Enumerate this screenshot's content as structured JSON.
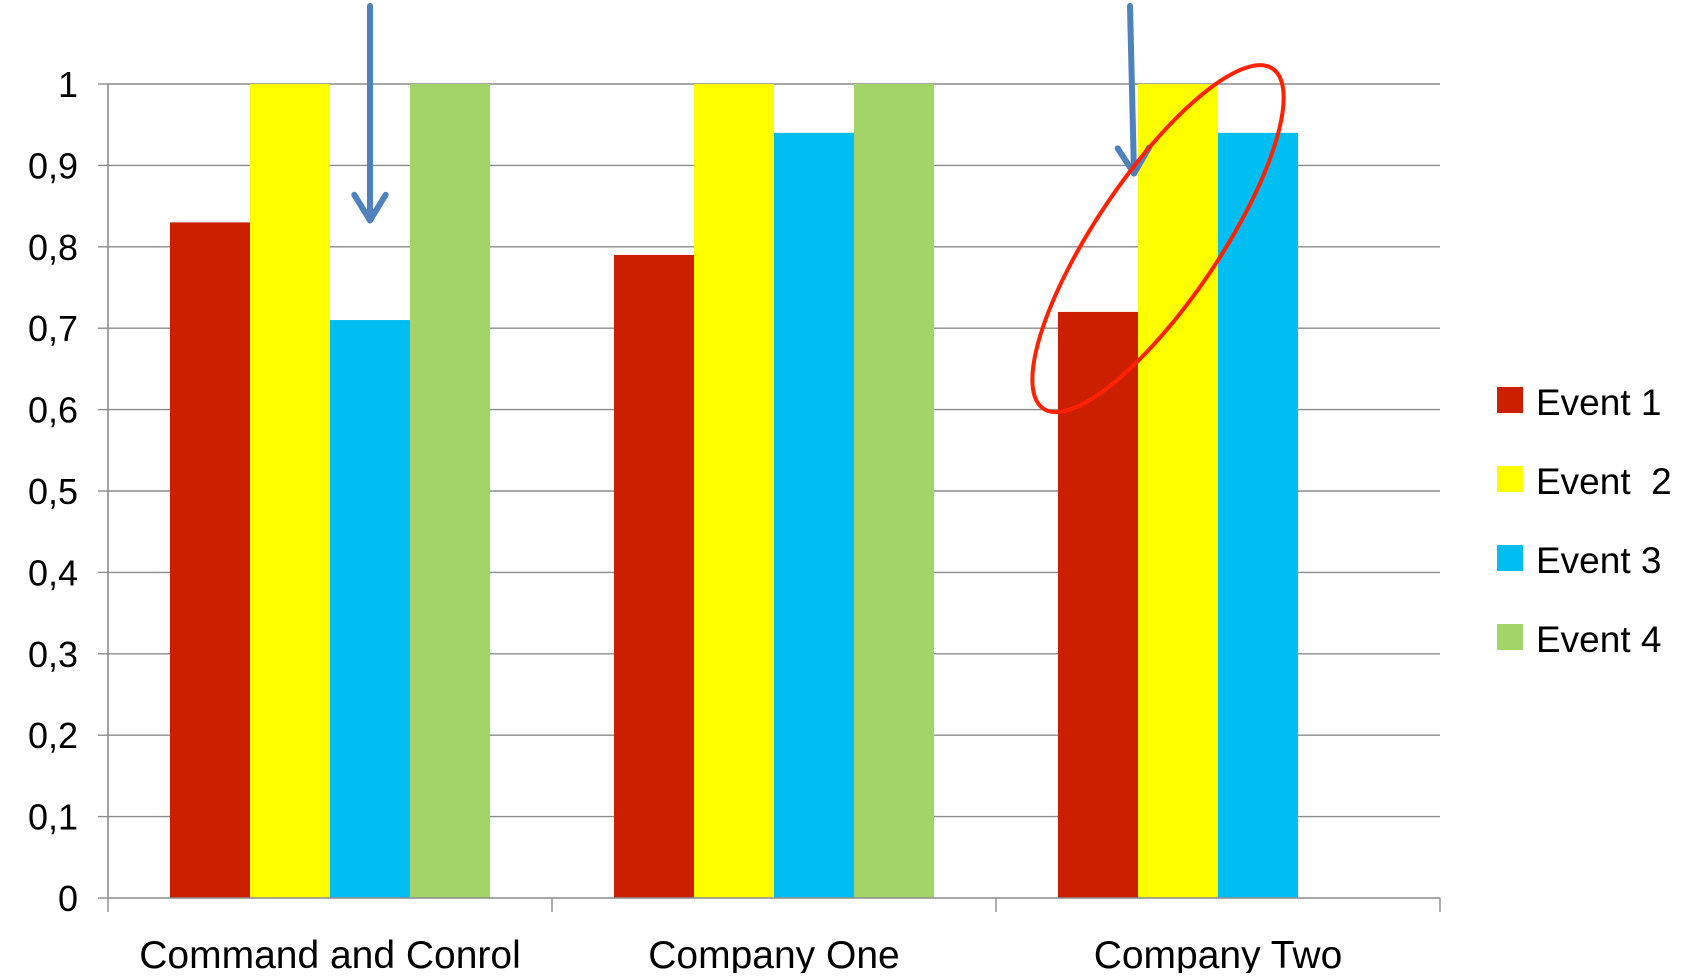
{
  "chart_data": {
    "type": "bar",
    "categories": [
      "Command and Conrol",
      "Company One",
      "Company Two"
    ],
    "series": [
      {
        "name": "Event 1",
        "color": "#cc1f00",
        "values": [
          0.83,
          0.79,
          0.72
        ]
      },
      {
        "name": "Event  2",
        "color": "#ffff00",
        "values": [
          1.0,
          1.0,
          1.0
        ]
      },
      {
        "name": "Event 3",
        "color": "#00bdf2",
        "values": [
          0.71,
          0.94,
          0.94
        ]
      },
      {
        "name": "Event 4",
        "color": "#a2d468",
        "values": [
          1.0,
          1.0,
          null
        ]
      }
    ],
    "ylim": [
      0,
      1
    ],
    "yticks": [
      "0",
      "0,1",
      "0,2",
      "0,3",
      "0,4",
      "0,5",
      "0,6",
      "0,7",
      "0,8",
      "0,9",
      "1"
    ],
    "grid": true,
    "legend_position": "right",
    "annotations": [
      {
        "type": "arrow",
        "color": "#4f81bd",
        "points_to": "Command and Conrol / Event 3"
      },
      {
        "type": "arrow",
        "color": "#4f81bd",
        "points_to": "Company Two"
      },
      {
        "type": "ellipse",
        "color": "#ff2200",
        "encircles": "Company Two / Event 1 and Event  2"
      }
    ]
  }
}
